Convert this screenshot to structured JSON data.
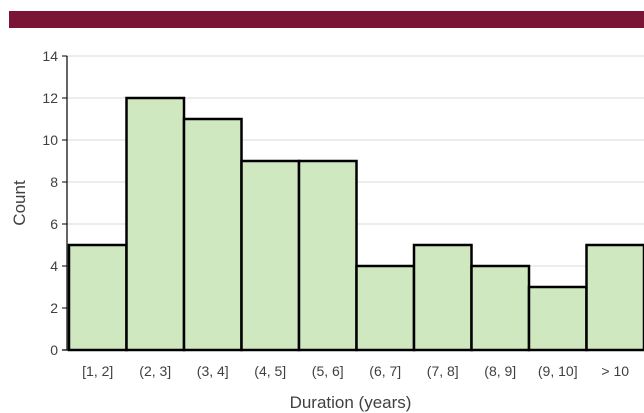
{
  "colors": {
    "band": "#7a1535",
    "bar_fill": "#d0e8c0",
    "bar_stroke": "#000000",
    "grid": "#d9d9d9",
    "axis": "#000000",
    "text": "#404040"
  },
  "chart_data": {
    "type": "bar",
    "categories": [
      "[1, 2]",
      "(2, 3]",
      "(3, 4]",
      "(4, 5]",
      "(5, 6]",
      "(6, 7]",
      "(7, 8]",
      "(8, 9]",
      "(9, 10]",
      "> 10"
    ],
    "values": [
      5,
      12,
      11,
      9,
      9,
      4,
      5,
      4,
      3,
      5
    ],
    "title": "",
    "xlabel": "Duration (years)",
    "ylabel": "Count",
    "ylim": [
      0,
      14
    ],
    "yticks": [
      0,
      2,
      4,
      6,
      8,
      10,
      12,
      14
    ],
    "grid": true,
    "legend": "none"
  }
}
